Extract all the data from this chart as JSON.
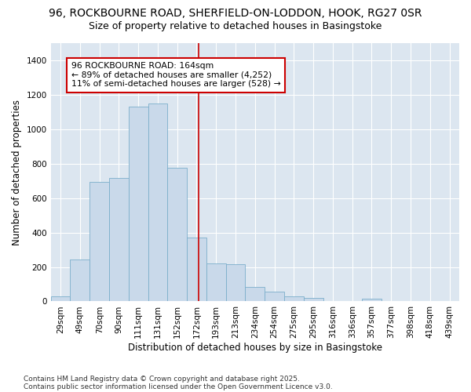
{
  "title_line1": "96, ROCKBOURNE ROAD, SHERFIELD-ON-LODDON, HOOK, RG27 0SR",
  "title_line2": "Size of property relative to detached houses in Basingstoke",
  "xlabel": "Distribution of detached houses by size in Basingstoke",
  "ylabel": "Number of detached properties",
  "categories": [
    "29sqm",
    "49sqm",
    "70sqm",
    "90sqm",
    "111sqm",
    "131sqm",
    "152sqm",
    "172sqm",
    "193sqm",
    "213sqm",
    "234sqm",
    "254sqm",
    "275sqm",
    "295sqm",
    "316sqm",
    "336sqm",
    "357sqm",
    "377sqm",
    "398sqm",
    "418sqm",
    "439sqm"
  ],
  "values": [
    28,
    245,
    695,
    715,
    1130,
    1150,
    775,
    370,
    220,
    215,
    83,
    55,
    28,
    22,
    0,
    0,
    18,
    0,
    0,
    0,
    0
  ],
  "bar_color": "#c9d9ea",
  "bar_edge_color": "#7baecb",
  "vline_color": "#cc0000",
  "annotation_text": "96 ROCKBOURNE ROAD: 164sqm\n← 89% of detached houses are smaller (4,252)\n11% of semi-detached houses are larger (528) →",
  "annotation_box_color": "#ffffff",
  "annotation_box_edge": "#cc0000",
  "ylim": [
    0,
    1500
  ],
  "yticks": [
    0,
    200,
    400,
    600,
    800,
    1000,
    1200,
    1400
  ],
  "fig_background": "#ffffff",
  "plot_background": "#dce6f0",
  "grid_color": "#ffffff",
  "footer_line1": "Contains HM Land Registry data © Crown copyright and database right 2025.",
  "footer_line2": "Contains public sector information licensed under the Open Government Licence v3.0.",
  "title_fontsize": 10,
  "subtitle_fontsize": 9,
  "axis_label_fontsize": 8.5,
  "tick_fontsize": 7.5,
  "footer_fontsize": 6.5
}
